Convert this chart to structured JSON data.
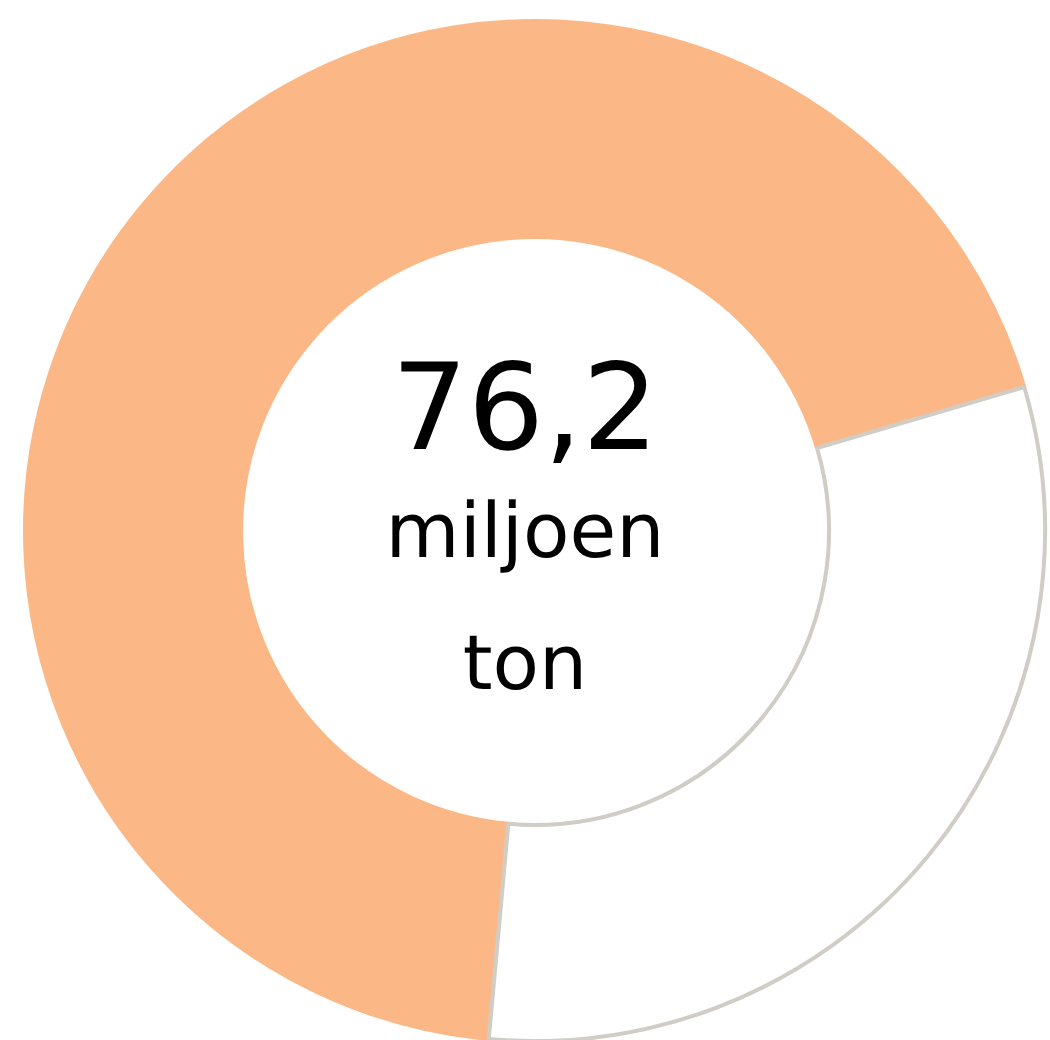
{
  "chart_data": {
    "type": "donut",
    "categories": [
      null,
      null
    ],
    "values": [
      69,
      31
    ],
    "colors": [
      "#fbb886",
      "#ffffff"
    ],
    "annotations": [
      "76,2",
      "miljoen\nton"
    ]
  }
}
